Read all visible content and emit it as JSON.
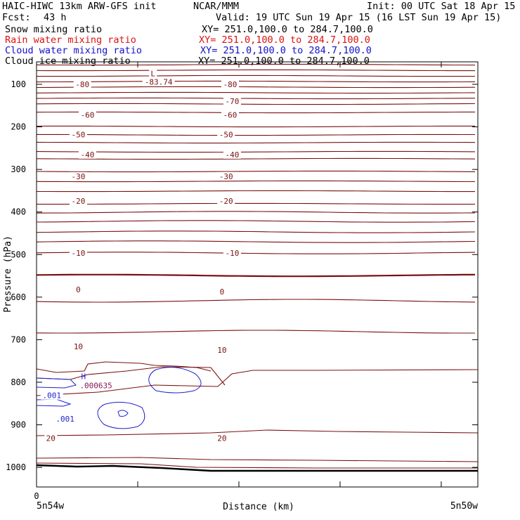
{
  "header": {
    "model": "HAIC-HIWC 13km ARW-GFS init",
    "org": "NCAR/MMM",
    "init": "Init: 00 UTC Sat 18 Apr 15",
    "fcst_label": "Fcst:",
    "fcst_value": "43 h",
    "valid": "Valid: 19 UTC Sun 19 Apr 15 (16 LST Sun 19 Apr 15)",
    "fields": [
      {
        "name": "Snow mixing ratio",
        "xy": "XY= 251.0,100.0 to 284.7,100.0",
        "color": "#000000"
      },
      {
        "name": "Rain water mixing ratio",
        "xy": "XY= 251.0,100.0 to 284.7,100.0",
        "color": "#dd1111"
      },
      {
        "name": "Cloud water mixing ratio",
        "xy": "XY= 251.0,100.0 to 284.7,100.0",
        "color": "#1111cc"
      },
      {
        "name": "Cloud ice mixing ratio",
        "xy": "XY= 251.0,100.0 to 284.7,100.0",
        "color": "#000000"
      }
    ]
  },
  "chart_data": {
    "type": "line",
    "title": "",
    "xlabel": "Distance (km)",
    "ylabel": "Pressure (hPa)",
    "x_tick_labels": [
      "0"
    ],
    "x_endpoints": [
      "5n54w",
      "5n50w"
    ],
    "y_ticks": [
      100,
      200,
      300,
      400,
      500,
      600,
      700,
      800,
      900,
      1000
    ],
    "ylim": [
      1050,
      50
    ],
    "colors": {
      "temperature": "#7a1010",
      "cloud_water": "#1f1fd0",
      "snow": "#000000"
    },
    "temperature_contour_labels": [
      {
        "value": "-80",
        "x": 0.45,
        "p": 100
      },
      {
        "value": "-80",
        "x": 1.9,
        "p": 100
      },
      {
        "value": "-70",
        "x": 1.92,
        "p": 140
      },
      {
        "value": "-60",
        "x": 0.5,
        "p": 172
      },
      {
        "value": "-60",
        "x": 1.9,
        "p": 172
      },
      {
        "value": "-50",
        "x": 0.41,
        "p": 218
      },
      {
        "value": "-50",
        "x": 1.86,
        "p": 218
      },
      {
        "value": "-40",
        "x": 0.5,
        "p": 265
      },
      {
        "value": "-40",
        "x": 1.92,
        "p": 265
      },
      {
        "value": "-30",
        "x": 0.41,
        "p": 316
      },
      {
        "value": "-30",
        "x": 1.86,
        "p": 316
      },
      {
        "value": "-20",
        "x": 0.41,
        "p": 374
      },
      {
        "value": "-20",
        "x": 1.86,
        "p": 374
      },
      {
        "value": "-10",
        "x": 0.41,
        "p": 496
      },
      {
        "value": "-10",
        "x": 1.92,
        "p": 496
      },
      {
        "value": "0",
        "x": 0.41,
        "p": 582
      },
      {
        "value": "0",
        "x": 1.82,
        "p": 587
      },
      {
        "value": "10",
        "x": 0.41,
        "p": 716
      },
      {
        "value": "10",
        "x": 1.82,
        "p": 724
      },
      {
        "value": "20",
        "x": 0.14,
        "p": 931
      },
      {
        "value": "20",
        "x": 1.82,
        "p": 931
      }
    ],
    "minimum": {
      "marker": "L",
      "value": "-83.74",
      "x": 1.06,
      "p": 83
    },
    "cloud_water_labels": [
      {
        "value": ".001",
        "x": 0.15,
        "p": 831
      },
      {
        "value": ".001",
        "x": 0.28,
        "p": 886
      }
    ],
    "cloud_water_max": {
      "marker": "H",
      "value": ".000635",
      "x": 0.41,
      "p": 799
    }
  }
}
